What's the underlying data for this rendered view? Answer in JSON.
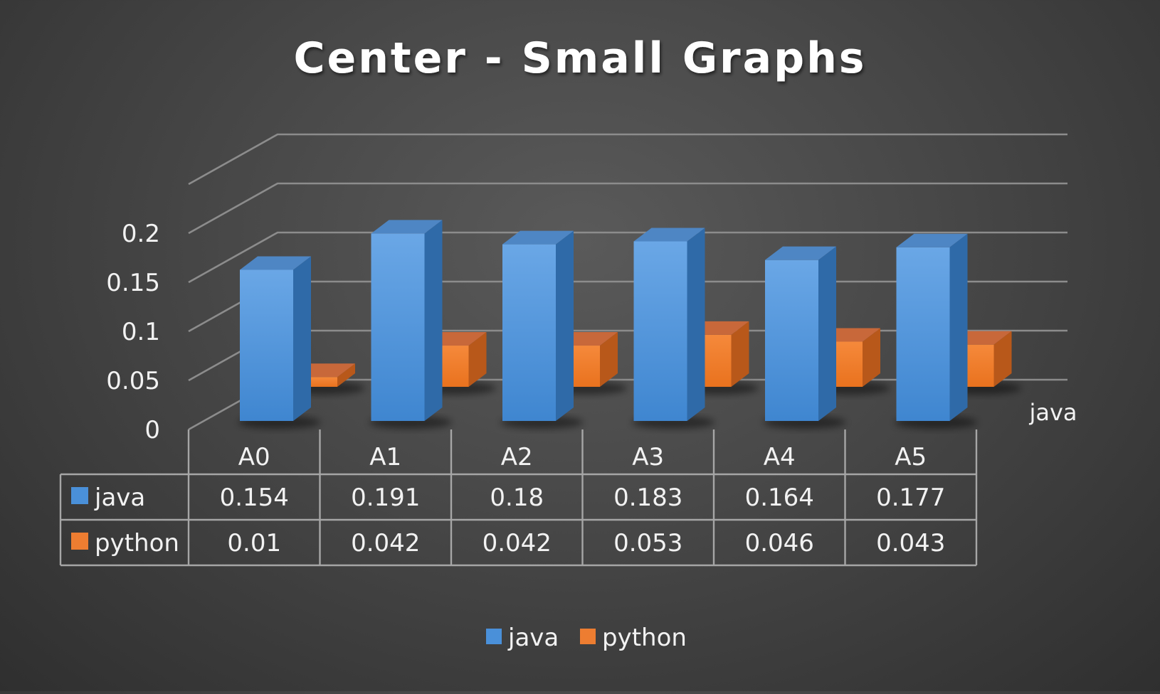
{
  "chart_data": {
    "type": "bar",
    "title": "Center - Small Graphs",
    "categories": [
      "A0",
      "A1",
      "A2",
      "A3",
      "A4",
      "A5"
    ],
    "series": [
      {
        "name": "java",
        "values": [
          0.154,
          0.191,
          0.18,
          0.183,
          0.164,
          0.177
        ],
        "color": "#4a90d9"
      },
      {
        "name": "python",
        "values": [
          0.01,
          0.042,
          0.042,
          0.053,
          0.046,
          0.043
        ],
        "color": "#ed7d31"
      }
    ],
    "y_ticks": [
      "0",
      "0.05",
      "0.1",
      "0.15",
      "0.2"
    ],
    "ylim": [
      0,
      0.25
    ],
    "depth_axis_label": "java",
    "data_table": {
      "rows": [
        {
          "label": "java",
          "values": [
            "0.154",
            "0.191",
            "0.18",
            "0.183",
            "0.164",
            "0.177"
          ]
        },
        {
          "label": "python",
          "values": [
            "0.01",
            "0.042",
            "0.042",
            "0.053",
            "0.046",
            "0.043"
          ]
        }
      ]
    },
    "legend": {
      "position": "bottom",
      "items": [
        "java",
        "python"
      ]
    },
    "grid": true
  }
}
